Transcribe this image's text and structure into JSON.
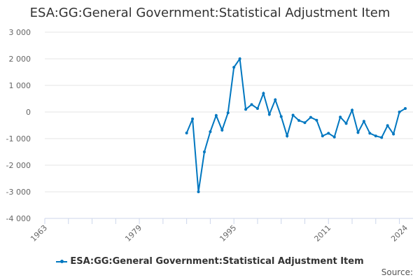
{
  "chart_data": {
    "type": "line",
    "title": "ESA:GG:General Government:Statistical Adjustment Item",
    "xlabel": "",
    "ylabel": "",
    "xlim": [
      1963,
      2024
    ],
    "ylim": [
      -4000,
      3000
    ],
    "x_ticks": [
      "1963",
      "1979",
      "1995",
      "2011",
      "2024"
    ],
    "y_ticks": [
      "3 000",
      "2 000",
      "1 000",
      "0",
      "-1 000",
      "-2 000",
      "-3 000",
      "-4 000"
    ],
    "grid": true,
    "legend_position": "bottom",
    "color": "#0077c0",
    "series": [
      {
        "name": "ESA:GG:General Government:Statistical Adjustment Item",
        "x": [
          1987,
          1988,
          1989,
          1990,
          1991,
          1992,
          1993,
          1994,
          1995,
          1996,
          1997,
          1998,
          1999,
          2000,
          2001,
          2002,
          2003,
          2004,
          2005,
          2006,
          2007,
          2008,
          2009,
          2010,
          2011,
          2012,
          2013,
          2014,
          2015,
          2016,
          2017,
          2018,
          2019,
          2020,
          2021,
          2022,
          2023,
          2024
        ],
        "values": [
          -790,
          -260,
          -3000,
          -1500,
          -740,
          -130,
          -680,
          -30,
          1680,
          2000,
          100,
          280,
          130,
          700,
          -90,
          460,
          -170,
          -900,
          -120,
          -320,
          -400,
          -200,
          -310,
          -900,
          -800,
          -940,
          -190,
          -430,
          70,
          -770,
          -350,
          -800,
          -900,
          -960,
          -510,
          -830,
          0,
          130
        ]
      }
    ]
  },
  "source_label": "Source:"
}
